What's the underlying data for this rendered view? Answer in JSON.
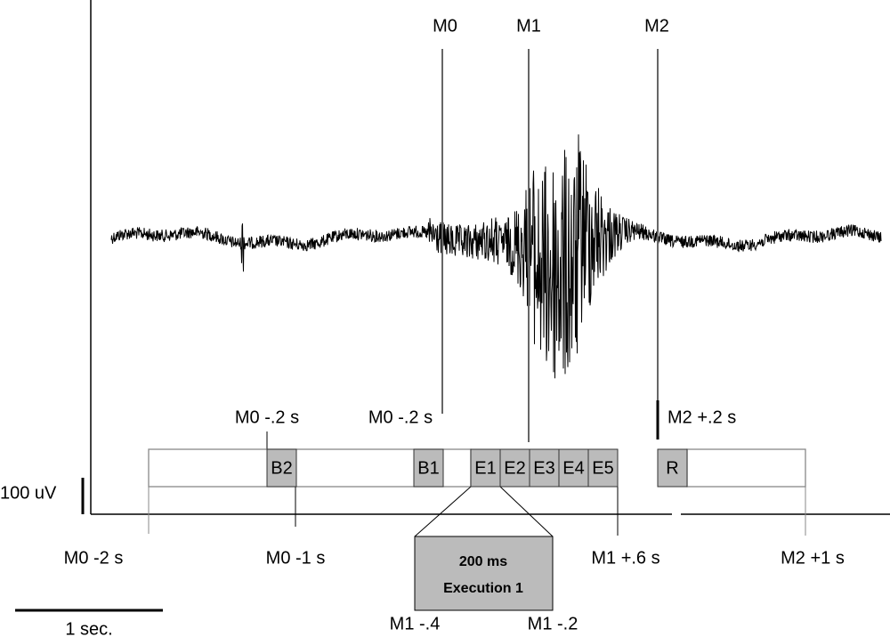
{
  "markers": {
    "m0": "M0",
    "m1": "M1",
    "m2": "M2"
  },
  "upper_labels": {
    "b2": "M0 -.2 s",
    "b1": "M0 -.2 s",
    "r": "M2 +.2 s"
  },
  "boxes": {
    "b2": "B2",
    "b1": "B1",
    "e1": "E1",
    "e2": "E2",
    "e3": "E3",
    "e4": "E4",
    "e5": "E5",
    "r": "R"
  },
  "lower_labels": {
    "m0_minus_2": "M0 -2 s",
    "m0_minus_1": "M0 -1 s",
    "m1_plus_06": "M1 +.6 s",
    "m2_plus_1": "M2 +1 s",
    "m1_minus_04": "M1 -.4",
    "m1_minus_02": "M1 -.2"
  },
  "zoom": {
    "duration": "200 ms",
    "name": "Execution 1"
  },
  "scale": {
    "amplitude": "100 uV",
    "time": "1 sec."
  }
}
